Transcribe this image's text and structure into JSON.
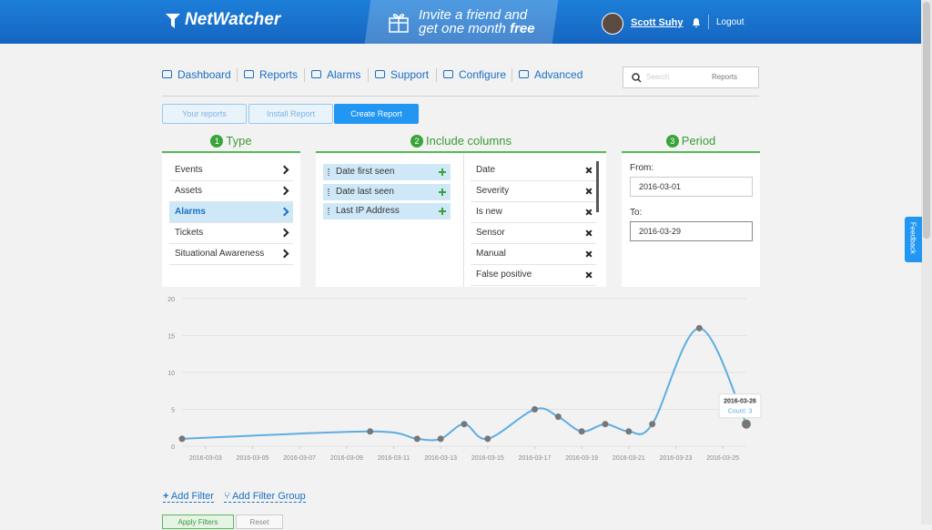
{
  "header": {
    "logo": "NetWatcher",
    "promo_line1": "Invite a friend and",
    "promo_line2": "get one month",
    "promo_emphasis": "free",
    "user": "Scott Suhy",
    "logout": "Logout"
  },
  "nav": [
    "Dashboard",
    "Reports",
    "Alarms",
    "Support",
    "Configure",
    "Advanced"
  ],
  "search": {
    "placeholder": "Search",
    "scope": "Reports"
  },
  "tabs": [
    "Your reports",
    "Install Report",
    "Create Report"
  ],
  "sections": [
    {
      "step": "1",
      "title": "Type"
    },
    {
      "step": "2",
      "title": "Include columns"
    },
    {
      "step": "3",
      "title": "Period"
    }
  ],
  "type_list": [
    "Events",
    "Assets",
    "Alarms",
    "Tickets",
    "Situational Awareness"
  ],
  "selected_columns": [
    "Date first seen",
    "Date last seen",
    "Last IP Address"
  ],
  "available_columns": [
    "Date",
    "Severity",
    "Is new",
    "Sensor",
    "Manual",
    "False positive"
  ],
  "period": {
    "from_label": "From:",
    "from": "2016-03-01",
    "to_label": "To:",
    "to": "2016-03-29"
  },
  "chart": {
    "type": "line",
    "color": "#5dade2",
    "point_color": "#777777",
    "x": [
      "2016-03-02",
      "2016-03-10",
      "2016-03-12",
      "2016-03-13",
      "2016-03-14",
      "2016-03-15",
      "2016-03-17",
      "2016-03-18",
      "2016-03-19",
      "2016-03-20",
      "2016-03-21",
      "2016-03-22",
      "2016-03-24",
      "2016-03-26"
    ],
    "values": [
      1,
      2,
      1,
      1,
      3,
      1,
      5,
      4,
      2,
      3,
      2,
      3,
      16,
      3
    ],
    "xlim": [
      "2016-03-02",
      "2016-03-26"
    ],
    "xticks": [
      "2016-03-03",
      "2016-03-05",
      "2016-03-07",
      "2016-03-09",
      "2016-03-11",
      "2016-03-13",
      "2016-03-15",
      "2016-03-17",
      "2016-03-19",
      "2016-03-21",
      "2016-03-23",
      "2016-03-25"
    ],
    "ylim": [
      0,
      20
    ],
    "yticks": [
      0,
      5,
      10,
      15,
      20
    ],
    "grid": true,
    "tooltip": {
      "date": "2016-03-26",
      "label": "Count: 3"
    }
  },
  "filters": {
    "add_filter": "Add Filter",
    "add_group": "Add Filter Group",
    "apply": "Apply Filters",
    "reset": "Reset"
  },
  "feedback": "Feedback"
}
